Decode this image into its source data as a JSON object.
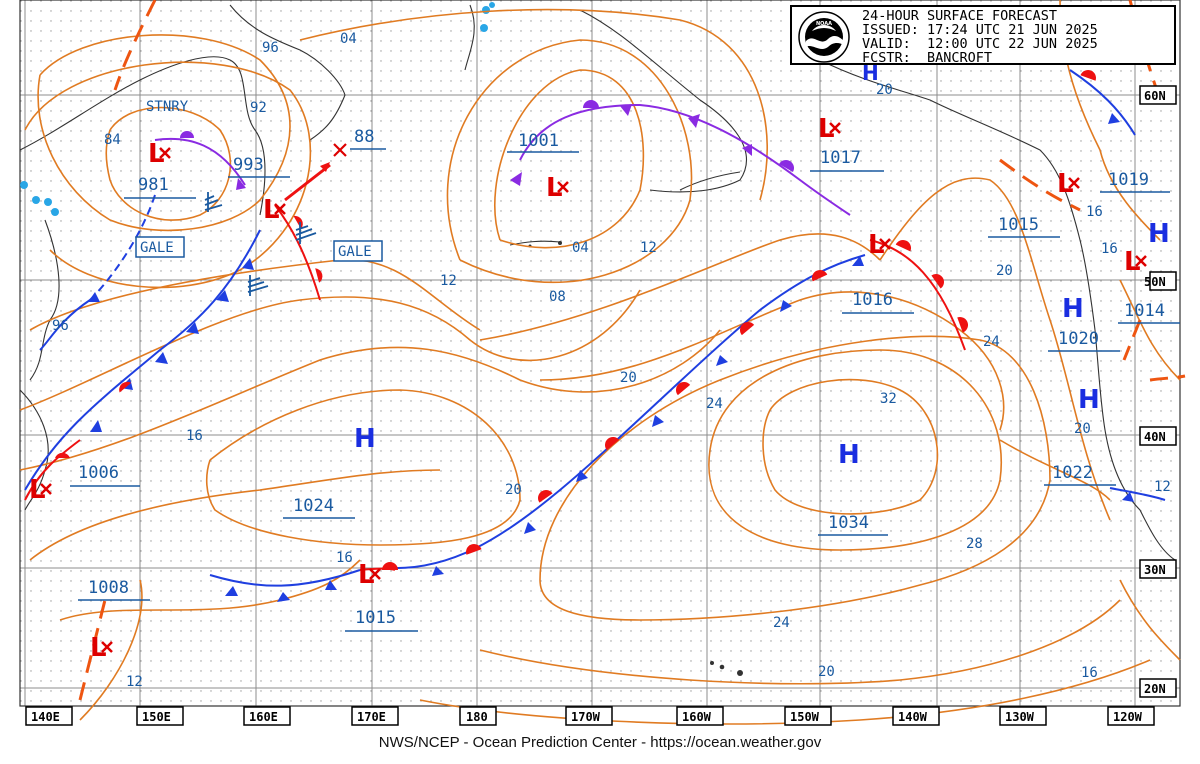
{
  "product": {
    "title": "24-HOUR SURFACE FORECAST",
    "issued": "ISSUED: 17:24 UTC 21 JUN 2025",
    "valid": "VALID:  12:00 UTC 22 JUN 2025",
    "forecaster": "FCSTR:  BANCROFT",
    "logo": "NOAA"
  },
  "footer": "NWS/NCEP - Ocean Prediction Center - https://ocean.weather.gov",
  "lon_labels": [
    "140E",
    "150E",
    "160E",
    "170E",
    "180",
    "170W",
    "160W",
    "150W",
    "140W",
    "130W",
    "120W"
  ],
  "lat_labels": [
    "60N",
    "50N",
    "40N",
    "30N",
    "20N"
  ],
  "centers": [
    {
      "type": "L",
      "pressure": "981"
    },
    {
      "type": "L",
      "pressure": "993"
    },
    {
      "type": "L",
      "pressure": "1001"
    },
    {
      "type": "L",
      "pressure": "1017"
    },
    {
      "type": "L",
      "pressure": "1016"
    },
    {
      "type": "L",
      "pressure": "1006"
    },
    {
      "type": "L",
      "pressure": "1008"
    },
    {
      "type": "L",
      "pressure": "1015"
    },
    {
      "type": "L",
      "pressure": "1014"
    },
    {
      "type": "L",
      "pressure": "1019"
    },
    {
      "type": "H",
      "pressure": "1024"
    },
    {
      "type": "H",
      "pressure": "1034"
    },
    {
      "type": "H",
      "pressure": "1015"
    },
    {
      "type": "H",
      "pressure": "1020"
    },
    {
      "type": "H",
      "pressure": "1022"
    }
  ],
  "forecast_position": "88",
  "tags": {
    "gale_1": "GALE",
    "gale_2": "GALE",
    "stationary": "STNRY"
  },
  "isobar_labels": [
    "84",
    "96",
    "92",
    "04",
    "96",
    "12",
    "04",
    "08",
    "12",
    "16",
    "20",
    "20",
    "24",
    "32",
    "28",
    "24",
    "20",
    "16",
    "16",
    "20",
    "20",
    "24",
    "16",
    "16",
    "12",
    "12",
    "20",
    "20"
  ],
  "colors": {
    "isobar": "#e07b22",
    "cold_front": "#1f3fe0",
    "warm_front": "#ee1111",
    "occluded": "#8a2be2",
    "trough": "#ee5511",
    "label": "#1a5aa0",
    "low": "#dd0000",
    "high": "#1a2ee0"
  }
}
